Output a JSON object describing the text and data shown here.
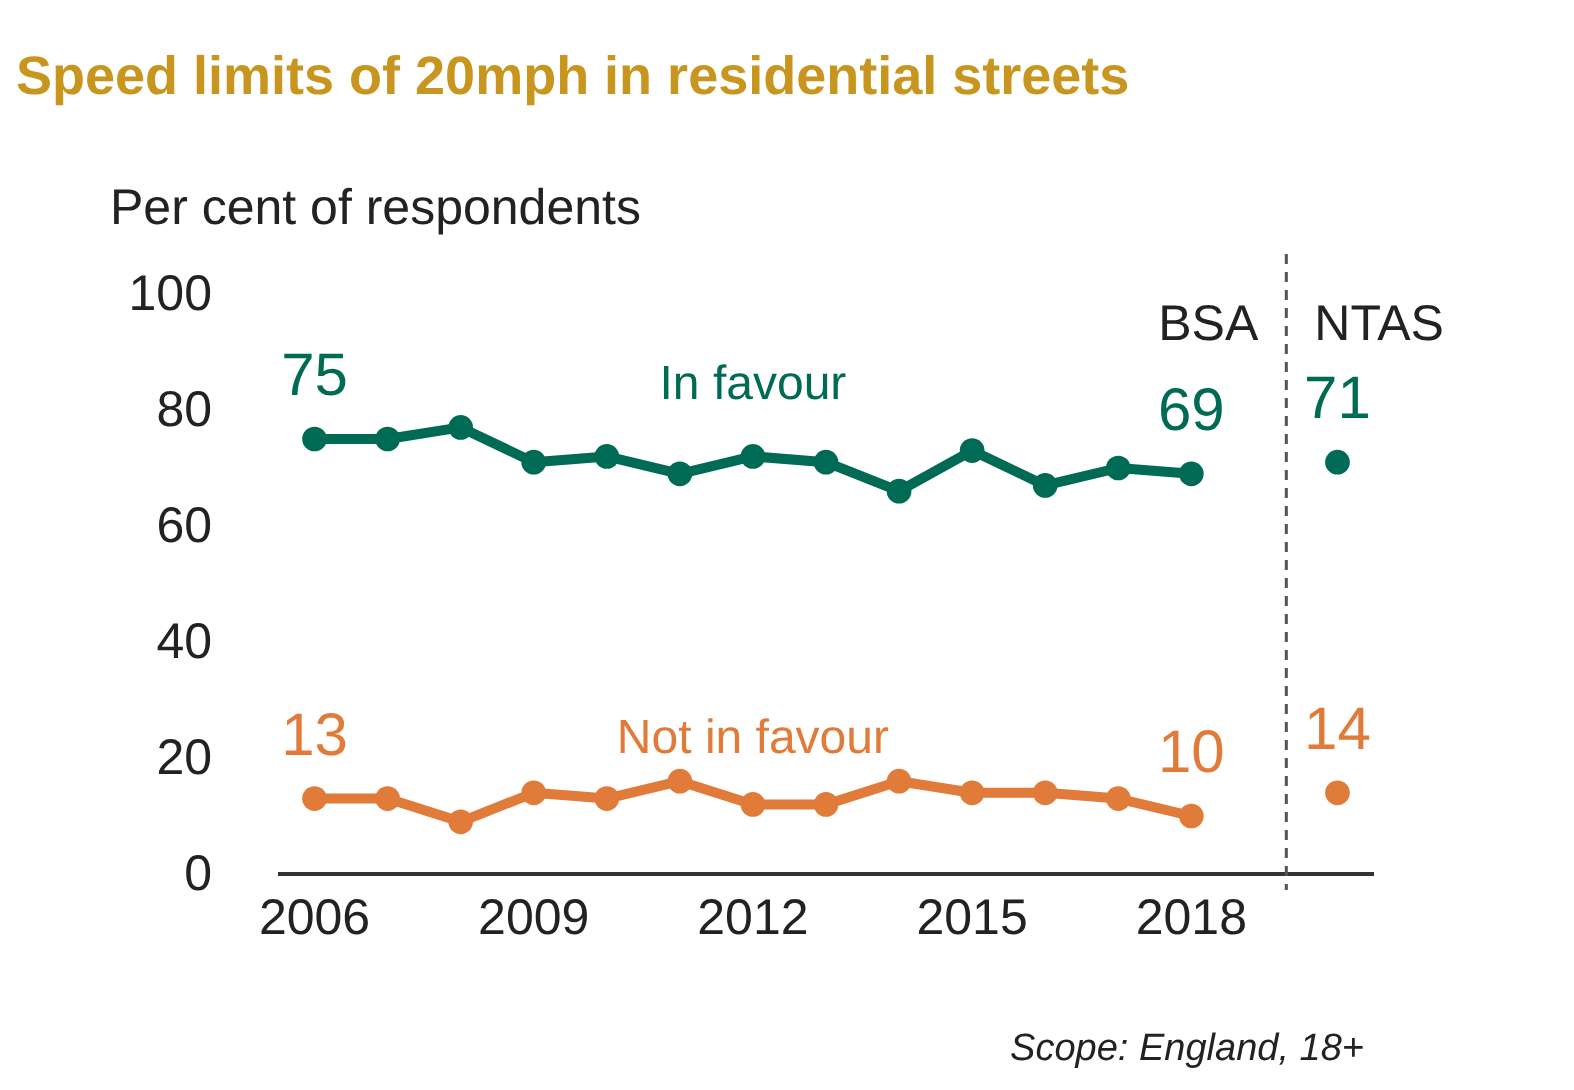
{
  "chart_data": {
    "type": "line",
    "title": "Speed limits of 20mph in residential streets",
    "ylabel": "Per cent of respondents",
    "series": [
      {
        "name": "In favour",
        "color": "#006b54",
        "x": [
          2006,
          2007,
          2008,
          2009,
          2010,
          2011,
          2012,
          2013,
          2014,
          2015,
          2016,
          2017,
          2018
        ],
        "values": [
          75,
          75,
          77,
          71,
          72,
          69,
          72,
          71,
          66,
          73,
          67,
          70,
          69
        ],
        "value_labels": [
          "75",
          null,
          null,
          null,
          null,
          null,
          null,
          null,
          null,
          null,
          null,
          null,
          "69"
        ]
      },
      {
        "name": "Not in favour",
        "color": "#e07b39",
        "x": [
          2006,
          2007,
          2008,
          2009,
          2010,
          2011,
          2012,
          2013,
          2014,
          2015,
          2016,
          2017,
          2018
        ],
        "values": [
          13,
          13,
          9,
          14,
          13,
          16,
          12,
          12,
          16,
          14,
          14,
          13,
          10
        ],
        "value_labels": [
          "13",
          null,
          null,
          null,
          null,
          null,
          null,
          null,
          null,
          null,
          null,
          null,
          "10"
        ]
      },
      {
        "type": "scatter",
        "color": "#006b54",
        "x": [
          2020
        ],
        "values": [
          71
        ],
        "value_labels": [
          "71"
        ]
      },
      {
        "type": "scatter",
        "color": "#e07b39",
        "x": [
          2020
        ],
        "values": [
          14
        ],
        "value_labels": [
          "14"
        ]
      }
    ],
    "xlim": [
      2005.5,
      2020.5
    ],
    "xticks": [
      2006,
      2009,
      2012,
      2015,
      2018
    ],
    "ylim": [
      0,
      100
    ],
    "yticks": [
      0,
      20,
      40,
      60,
      80,
      100
    ],
    "ref_lines": [
      {
        "axis": "x",
        "value": 2019.3,
        "line_style": "dashed",
        "color": "#555555"
      }
    ],
    "annotations": [
      "BSA",
      "NTAS",
      "Scope: England, 18+"
    ],
    "marker": "circle",
    "line_style": "solid",
    "grid": false
  }
}
